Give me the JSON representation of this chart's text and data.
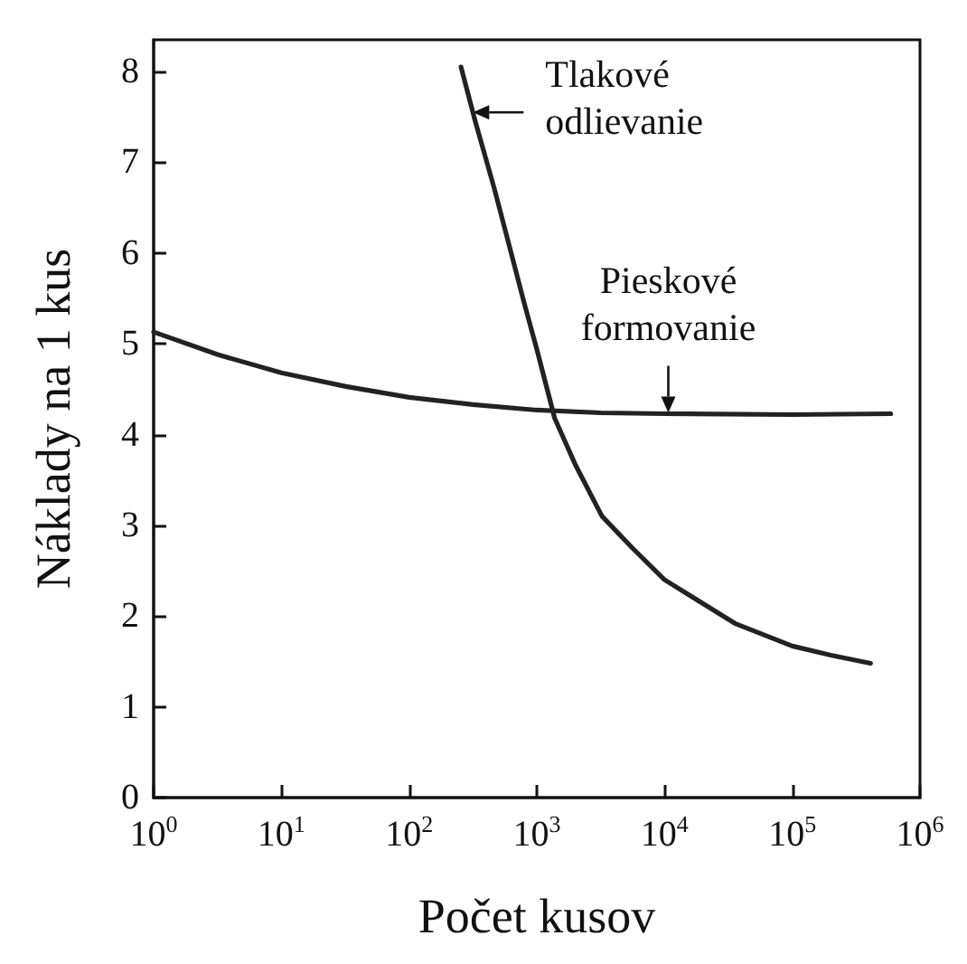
{
  "chart_data": {
    "type": "line",
    "xlabel": "Počet kusov",
    "ylabel": "Náklady na 1 kus",
    "log": "x",
    "xlim": [
      1,
      1000000
    ],
    "ylim": [
      0,
      8.35
    ],
    "xticks": [
      {
        "value": 1,
        "label": "10$^{0}$"
      },
      {
        "value": 10,
        "label": "10$^{1}$"
      },
      {
        "value": 100,
        "label": "10$^{2}$"
      },
      {
        "value": 1000,
        "label": "10$^{3}$"
      },
      {
        "value": 10000,
        "label": "10$^{4}$"
      },
      {
        "value": 100000,
        "label": "10$^{5}$"
      },
      {
        "value": 1000000,
        "label": "10$^{6}$"
      }
    ],
    "yticks": [
      0,
      1,
      2,
      3,
      4,
      5,
      6,
      7,
      8
    ],
    "grid": false,
    "marker": "none",
    "line_style": "solid",
    "series": [
      {
        "color": "#222222",
        "x": [
          1,
          3.2,
          10,
          32,
          100,
          316,
          1000,
          3160,
          10000,
          100000,
          590000
        ],
        "values": [
          5.13,
          4.88,
          4.68,
          4.53,
          4.41,
          4.33,
          4.27,
          4.24,
          4.23,
          4.22,
          4.23
        ]
      },
      {
        "color": "#222222",
        "x": [
          255,
          330,
          465,
          630,
          800,
          1000,
          1380,
          2000,
          3240,
          5600,
          10000,
          35500,
          100000,
          200000,
          410000
        ],
        "values": [
          8.05,
          7.45,
          6.71,
          6.0,
          5.44,
          4.94,
          4.18,
          3.67,
          3.1,
          2.75,
          2.4,
          1.92,
          1.67,
          1.57,
          1.48
        ]
      }
    ],
    "annotations": [
      {
        "text": "Tlakové\nodlievanie",
        "x": 316,
        "y": 7.55
      },
      {
        "text": "Pieskové\nformovanie",
        "x": 10700,
        "y": 4.24
      }
    ]
  }
}
